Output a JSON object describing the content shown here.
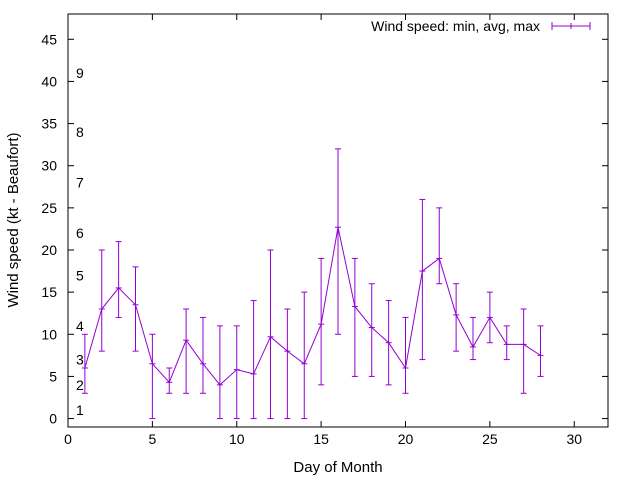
{
  "chart_data": {
    "type": "line",
    "xlabel": "Day of Month",
    "ylabel": "Wind speed (kt - Beaufort)",
    "xlim": [
      0,
      32
    ],
    "ylim": [
      -1,
      48
    ],
    "x_ticks": [
      0,
      5,
      10,
      15,
      20,
      25,
      30
    ],
    "y_ticks": [
      0,
      5,
      10,
      15,
      20,
      25,
      30,
      35,
      40,
      45
    ],
    "grid": false,
    "legend_position": "top-right",
    "series": [
      {
        "name": "Wind speed: min, avg, max",
        "color": "#9400d3",
        "points": [
          {
            "x": 1,
            "min": 3,
            "avg": 6,
            "max": 10
          },
          {
            "x": 2,
            "min": 8,
            "avg": 13,
            "max": 20
          },
          {
            "x": 3,
            "min": 12,
            "avg": 15.5,
            "max": 21
          },
          {
            "x": 4,
            "min": 8,
            "avg": 13.5,
            "max": 18
          },
          {
            "x": 5,
            "min": 0,
            "avg": 6.5,
            "max": 10
          },
          {
            "x": 6,
            "min": 3,
            "avg": 4.3,
            "max": 6
          },
          {
            "x": 7,
            "min": 3,
            "avg": 9.3,
            "max": 13
          },
          {
            "x": 8,
            "min": 3,
            "avg": 6.5,
            "max": 12
          },
          {
            "x": 9,
            "min": 0,
            "avg": 4,
            "max": 11
          },
          {
            "x": 10,
            "min": 0,
            "avg": 5.8,
            "max": 11
          },
          {
            "x": 11,
            "min": 0,
            "avg": 5.3,
            "max": 14
          },
          {
            "x": 12,
            "min": 0,
            "avg": 9.7,
            "max": 20
          },
          {
            "x": 13,
            "min": 0,
            "avg": 8,
            "max": 13
          },
          {
            "x": 14,
            "min": 0,
            "avg": 6.5,
            "max": 15
          },
          {
            "x": 15,
            "min": 4,
            "avg": 11.2,
            "max": 19
          },
          {
            "x": 16,
            "min": 10,
            "avg": 22.7,
            "max": 32
          },
          {
            "x": 17,
            "min": 5,
            "avg": 13.3,
            "max": 19
          },
          {
            "x": 18,
            "min": 5,
            "avg": 10.8,
            "max": 16
          },
          {
            "x": 19,
            "min": 4,
            "avg": 9,
            "max": 14
          },
          {
            "x": 20,
            "min": 3,
            "avg": 6,
            "max": 12
          },
          {
            "x": 21,
            "min": 7,
            "avg": 17.5,
            "max": 26
          },
          {
            "x": 22,
            "min": 16,
            "avg": 19,
            "max": 25
          },
          {
            "x": 23,
            "min": 8,
            "avg": 12.3,
            "max": 16
          },
          {
            "x": 24,
            "min": 7,
            "avg": 8.5,
            "max": 12
          },
          {
            "x": 25,
            "min": 9,
            "avg": 12,
            "max": 15
          },
          {
            "x": 26,
            "min": 7,
            "avg": 8.8,
            "max": 11
          },
          {
            "x": 27,
            "min": 3,
            "avg": 8.8,
            "max": 13
          },
          {
            "x": 28,
            "min": 5,
            "avg": 7.5,
            "max": 11
          }
        ]
      }
    ],
    "beaufort_labels": [
      {
        "text": "1",
        "y": 1
      },
      {
        "text": "2",
        "y": 4
      },
      {
        "text": "3",
        "y": 7
      },
      {
        "text": "4",
        "y": 11
      },
      {
        "text": "5",
        "y": 17
      },
      {
        "text": "6",
        "y": 22
      },
      {
        "text": "7",
        "y": 28
      },
      {
        "text": "8",
        "y": 34
      },
      {
        "text": "9",
        "y": 41
      }
    ]
  }
}
